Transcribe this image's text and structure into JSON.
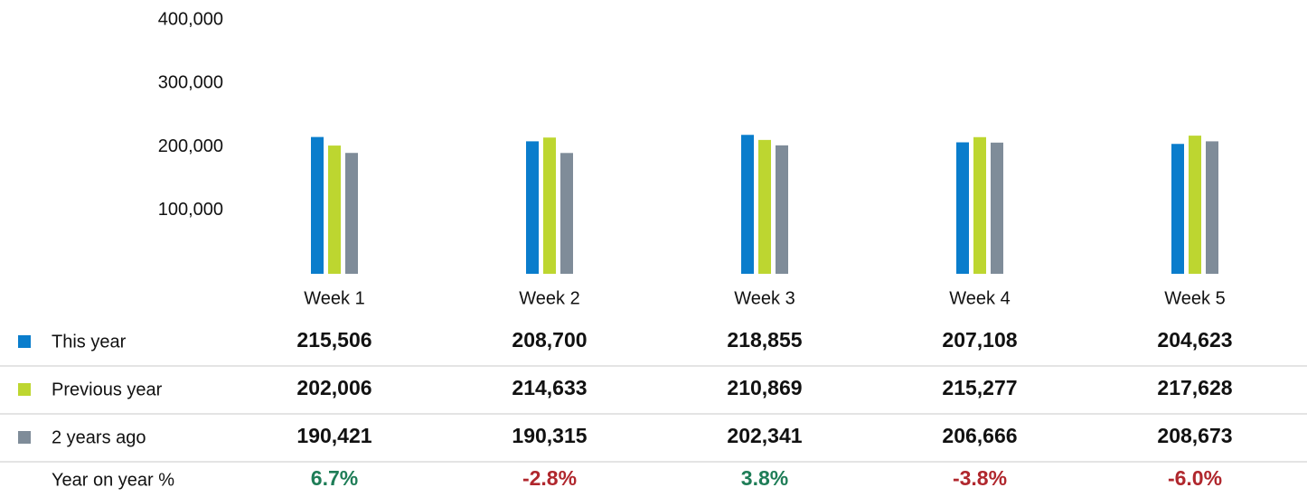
{
  "chart_data": {
    "type": "bar",
    "categories": [
      "Week 1",
      "Week 2",
      "Week 3",
      "Week 4",
      "Week 5"
    ],
    "series": [
      {
        "name": "This year",
        "color": "#0a7dcc",
        "values": [
          215506,
          208700,
          218855,
          207108,
          204623
        ],
        "value_labels": [
          "215,506",
          "208,700",
          "218,855",
          "207,108",
          "204,623"
        ]
      },
      {
        "name": "Previous year",
        "color": "#bdd630",
        "values": [
          202006,
          214633,
          210869,
          215277,
          217628
        ],
        "value_labels": [
          "202,006",
          "214,633",
          "210,869",
          "215,277",
          "217,628"
        ]
      },
      {
        "name": "2 years ago",
        "color": "#7f8c99",
        "values": [
          190421,
          190315,
          202341,
          206666,
          208673
        ],
        "value_labels": [
          "190,421",
          "190,315",
          "202,341",
          "206,666",
          "208,673"
        ]
      }
    ],
    "year_on_year": {
      "name": "Year on year %",
      "values": [
        6.7,
        -2.8,
        3.8,
        -3.8,
        -6.0
      ],
      "value_labels": [
        "6.7%",
        "-2.8%",
        "3.8%",
        "-3.8%",
        "-6.0%"
      ],
      "positive_color": "#1e7d57",
      "negative_color": "#b0272d"
    },
    "ylim": [
      0,
      400000
    ],
    "yticks": [
      {
        "value": 100000,
        "label": "100,000"
      },
      {
        "value": 200000,
        "label": "200,000"
      },
      {
        "value": 300000,
        "label": "300,000"
      },
      {
        "value": 400000,
        "label": "400,000"
      }
    ],
    "grid": false
  }
}
